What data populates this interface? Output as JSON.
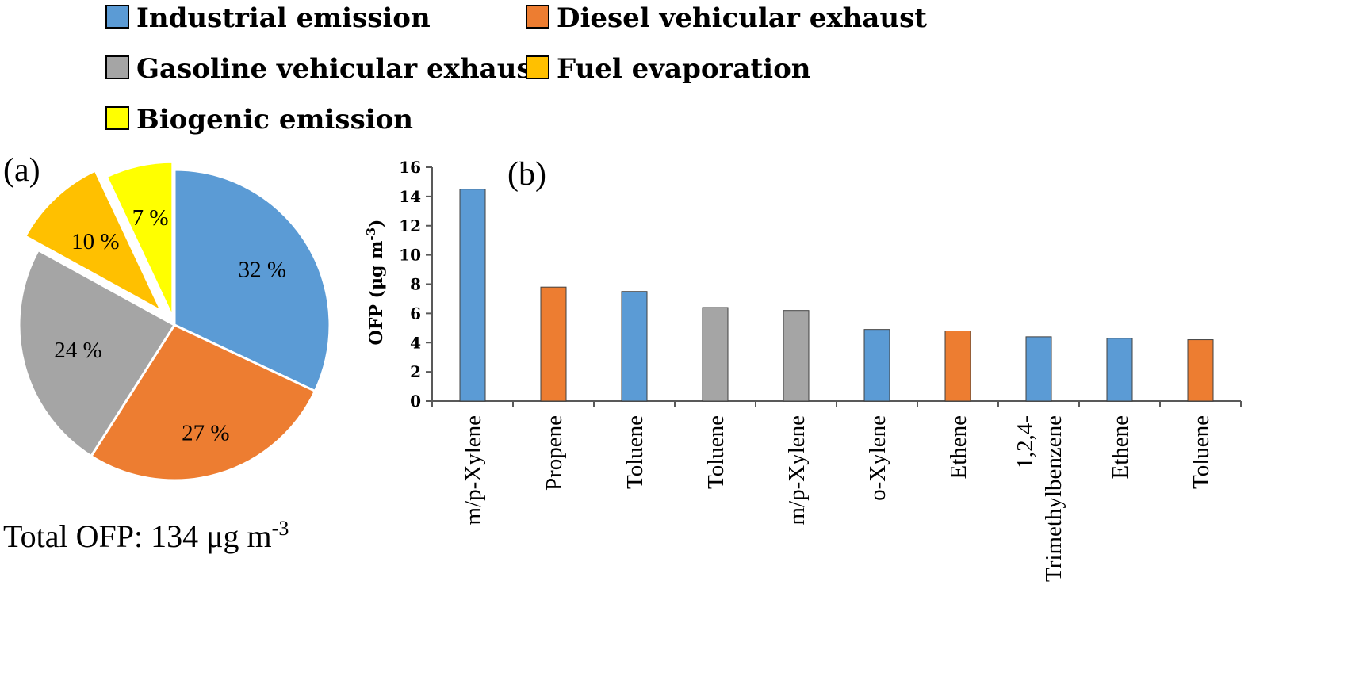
{
  "colors": {
    "industrial": "#5b9bd5",
    "diesel": "#ed7d31",
    "gasoline": "#a5a5a5",
    "fuel": "#ffc000",
    "biogenic": "#ffff00"
  },
  "legend": [
    {
      "label": "Industrial emission",
      "color_key": "industrial"
    },
    {
      "label": "Diesel vehicular exhaust",
      "color_key": "diesel"
    },
    {
      "label": "Gasoline vehicular exhaust",
      "color_key": "gasoline"
    },
    {
      "label": "Fuel evaporation",
      "color_key": "fuel"
    },
    {
      "label": "Biogenic emission",
      "color_key": "biogenic"
    }
  ],
  "panel_a": {
    "label": "(a)",
    "total_prefix": "Total OFP: 134 μg m",
    "total_sup": "-3"
  },
  "panel_b": {
    "label": "(b)"
  },
  "chart_data": [
    {
      "type": "pie",
      "title": "",
      "slices": [
        {
          "name": "Industrial emission",
          "value": 32,
          "label": "32 %",
          "color_key": "industrial"
        },
        {
          "name": "Diesel vehicular exhaust",
          "value": 27,
          "label": "27 %",
          "color_key": "diesel"
        },
        {
          "name": "Gasoline vehicular exhaust",
          "value": 24,
          "label": "24 %",
          "color_key": "gasoline"
        },
        {
          "name": "Fuel evaporation",
          "value": 10,
          "label": "10 %",
          "color_key": "fuel"
        },
        {
          "name": "Biogenic emission",
          "value": 7,
          "label": "7 %",
          "color_key": "biogenic"
        }
      ]
    },
    {
      "type": "bar",
      "categories": [
        "m/p-Xylene",
        "Propene",
        "Toluene",
        "Toluene",
        "m/p-Xylene",
        "o-Xylene",
        "Ethene",
        "1,2,4-Trimethylbenzene",
        "Ethene",
        "Toluene"
      ],
      "category_lines": [
        [
          "m/p-Xylene"
        ],
        [
          "Propene"
        ],
        [
          "Toluene"
        ],
        [
          "Toluene"
        ],
        [
          "m/p-Xylene"
        ],
        [
          "o-Xylene"
        ],
        [
          "Ethene"
        ],
        [
          "1,2,4-",
          "Trimethylbenzene"
        ],
        [
          "Ethene"
        ],
        [
          "Toluene"
        ]
      ],
      "values": [
        14.5,
        7.8,
        7.5,
        6.4,
        6.2,
        4.9,
        4.8,
        4.4,
        4.3,
        4.2
      ],
      "source_keys": [
        "industrial",
        "diesel",
        "industrial",
        "gasoline",
        "gasoline",
        "industrial",
        "diesel",
        "industrial",
        "industrial",
        "diesel"
      ],
      "ylabel_prefix": "OFP (μg m",
      "ylabel_sup": "-3",
      "ylabel_suffix": ")",
      "ylim": [
        0,
        16
      ],
      "yticks": [
        0,
        2,
        4,
        6,
        8,
        10,
        12,
        14,
        16
      ],
      "grid": false
    }
  ]
}
